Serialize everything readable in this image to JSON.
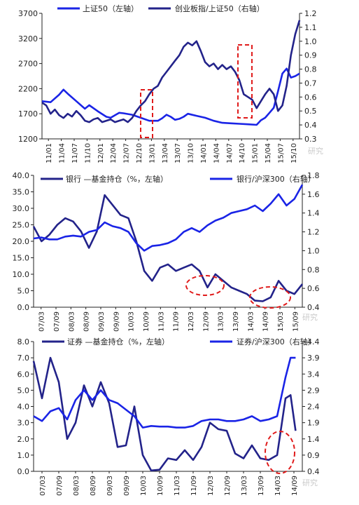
{
  "colors": {
    "blue": "#1a24e6",
    "navy": "#23238a",
    "red": "#e01b1b",
    "axis": "#222222"
  },
  "chart_data": [
    {
      "type": "line",
      "legend_position": "top",
      "legend": [
        "上证50（左轴）",
        "创业板指/上证50（右轴）"
      ],
      "left_axis": {
        "ticks": [
          "1200",
          "1700",
          "2200",
          "2700",
          "3200",
          "3700"
        ],
        "range": [
          1200,
          3700
        ]
      },
      "right_axis": {
        "ticks": [
          "0.3",
          "0.4",
          "0.5",
          "0.6",
          "0.7",
          "0.8",
          "0.9",
          "1.0",
          "1.1",
          "1.2"
        ],
        "range": [
          0.3,
          1.2
        ]
      },
      "x_ticks": [
        "11/01",
        "11/04",
        "11/07",
        "11/10",
        "12/01",
        "12/04",
        "12/07",
        "12/10",
        "13/01",
        "13/04",
        "13/07",
        "13/10",
        "14/01",
        "14/04",
        "14/07",
        "14/10",
        "15/01",
        "15/04",
        "15/07",
        "15/10"
      ],
      "x_range": [
        0,
        60
      ],
      "series": [
        {
          "name": "上证50（左轴）",
          "color": "#1a24e6",
          "axis": "left",
          "points": [
            [
              0,
              1950
            ],
            [
              2,
              1930
            ],
            [
              4,
              2080
            ],
            [
              5,
              2180
            ],
            [
              6,
              2100
            ],
            [
              8,
              1950
            ],
            [
              10,
              1800
            ],
            [
              11,
              1870
            ],
            [
              13,
              1750
            ],
            [
              15,
              1640
            ],
            [
              16,
              1620
            ],
            [
              18,
              1720
            ],
            [
              19,
              1710
            ],
            [
              21,
              1680
            ],
            [
              23,
              1620
            ],
            [
              25,
              1560
            ],
            [
              27,
              1560
            ],
            [
              28,
              1610
            ],
            [
              29,
              1680
            ],
            [
              30,
              1640
            ],
            [
              31,
              1580
            ],
            [
              32,
              1600
            ],
            [
              33,
              1640
            ],
            [
              34,
              1700
            ],
            [
              36,
              1660
            ],
            [
              38,
              1620
            ],
            [
              40,
              1560
            ],
            [
              42,
              1520
            ],
            [
              44,
              1510
            ],
            [
              46,
              1500
            ],
            [
              48,
              1490
            ],
            [
              50,
              1480
            ],
            [
              51,
              1570
            ],
            [
              52,
              1620
            ],
            [
              53,
              1720
            ],
            [
              54,
              1820
            ],
            [
              55,
              2150
            ],
            [
              56,
              2500
            ],
            [
              57,
              2600
            ],
            [
              58,
              2420
            ],
            [
              59,
              2450
            ],
            [
              60,
              2500
            ]
          ]
        },
        {
          "name": "创业板指/上证50（右轴）",
          "color": "#23238a",
          "axis": "right",
          "points": [
            [
              0,
              0.56
            ],
            [
              1,
              0.54
            ],
            [
              2,
              0.48
            ],
            [
              3,
              0.51
            ],
            [
              4,
              0.47
            ],
            [
              5,
              0.45
            ],
            [
              6,
              0.48
            ],
            [
              7,
              0.46
            ],
            [
              8,
              0.5
            ],
            [
              9,
              0.47
            ],
            [
              10,
              0.43
            ],
            [
              11,
              0.42
            ],
            [
              12,
              0.44
            ],
            [
              13,
              0.45
            ],
            [
              14,
              0.42
            ],
            [
              15,
              0.43
            ],
            [
              16,
              0.44
            ],
            [
              17,
              0.42
            ],
            [
              18,
              0.43
            ],
            [
              19,
              0.44
            ],
            [
              20,
              0.42
            ],
            [
              21,
              0.45
            ],
            [
              22,
              0.5
            ],
            [
              23,
              0.54
            ],
            [
              24,
              0.57
            ],
            [
              25,
              0.62
            ],
            [
              26,
              0.66
            ],
            [
              27,
              0.68
            ],
            [
              28,
              0.74
            ],
            [
              29,
              0.78
            ],
            [
              30,
              0.82
            ],
            [
              31,
              0.86
            ],
            [
              32,
              0.9
            ],
            [
              33,
              0.96
            ],
            [
              34,
              0.99
            ],
            [
              35,
              0.97
            ],
            [
              36,
              1.0
            ],
            [
              37,
              0.93
            ],
            [
              38,
              0.85
            ],
            [
              39,
              0.82
            ],
            [
              40,
              0.84
            ],
            [
              41,
              0.8
            ],
            [
              42,
              0.83
            ],
            [
              43,
              0.8
            ],
            [
              44,
              0.82
            ],
            [
              45,
              0.78
            ],
            [
              46,
              0.72
            ],
            [
              47,
              0.62
            ],
            [
              48,
              0.6
            ],
            [
              49,
              0.58
            ],
            [
              50,
              0.52
            ],
            [
              51,
              0.57
            ],
            [
              52,
              0.62
            ],
            [
              53,
              0.66
            ],
            [
              54,
              0.62
            ],
            [
              55,
              0.5
            ],
            [
              56,
              0.54
            ],
            [
              57,
              0.68
            ],
            [
              58,
              0.9
            ],
            [
              59,
              1.05
            ],
            [
              60,
              1.15
            ]
          ]
        }
      ]
    },
    {
      "type": "line",
      "legend_position": "top",
      "legend": [
        "银行 —基金持仓（%，左轴）",
        "银行/沪深300（右轴）"
      ],
      "left_axis": {
        "ticks": [
          "0.0",
          "5.0",
          "10.0",
          "15.0",
          "20.0",
          "25.0",
          "30.0",
          "35.0",
          "40.0"
        ],
        "range": [
          0,
          40
        ]
      },
      "right_axis": {
        "ticks": [
          "0.4",
          "0.6",
          "0.8",
          "1.0",
          "1.2",
          "1.4",
          "1.6",
          "1.8"
        ],
        "range": [
          0.4,
          1.8
        ]
      },
      "x_ticks": [
        "07/03",
        "07/09",
        "08/03",
        "08/09",
        "09/03",
        "09/09",
        "10/03",
        "10/09",
        "11/03",
        "11/09",
        "12/03",
        "12/09",
        "13/03",
        "13/09",
        "14/03",
        "14/09",
        "15/03",
        "15/09"
      ],
      "x_range": [
        0,
        17
      ],
      "series": [
        {
          "name": "银行 —基金持仓（%，左轴）",
          "color": "#23238a",
          "axis": "left",
          "points": [
            [
              0,
              24.5
            ],
            [
              0.5,
              20
            ],
            [
              1,
              22
            ],
            [
              1.5,
              25
            ],
            [
              2,
              27
            ],
            [
              2.5,
              26
            ],
            [
              3,
              23
            ],
            [
              3.5,
              18
            ],
            [
              4,
              23
            ],
            [
              4.5,
              34
            ],
            [
              5,
              31
            ],
            [
              5.5,
              28
            ],
            [
              6,
              27
            ],
            [
              6.5,
              20
            ],
            [
              7,
              11
            ],
            [
              7.5,
              8
            ],
            [
              8,
              12
            ],
            [
              8.5,
              13
            ],
            [
              9,
              11
            ],
            [
              9.5,
              12
            ],
            [
              10,
              13
            ],
            [
              10.5,
              11
            ],
            [
              11,
              6
            ],
            [
              11.5,
              10
            ],
            [
              12,
              8
            ],
            [
              12.5,
              6
            ],
            [
              13,
              5
            ],
            [
              13.5,
              4
            ],
            [
              14,
              2
            ],
            [
              14.5,
              1.8
            ],
            [
              15,
              3
            ],
            [
              15.5,
              8
            ],
            [
              16,
              5
            ],
            [
              16.5,
              4
            ],
            [
              17,
              7
            ]
          ]
        },
        {
          "name": "银行/沪深300（右轴）",
          "color": "#1a24e6",
          "axis": "right",
          "points": [
            [
              0,
              1.13
            ],
            [
              0.5,
              1.14
            ],
            [
              1,
              1.12
            ],
            [
              1.5,
              1.12
            ],
            [
              2,
              1.15
            ],
            [
              2.5,
              1.16
            ],
            [
              3,
              1.15
            ],
            [
              3.5,
              1.2
            ],
            [
              4,
              1.22
            ],
            [
              4.5,
              1.3
            ],
            [
              5,
              1.26
            ],
            [
              5.5,
              1.24
            ],
            [
              6,
              1.2
            ],
            [
              6.5,
              1.08
            ],
            [
              7,
              1.0
            ],
            [
              7.5,
              1.05
            ],
            [
              8,
              1.06
            ],
            [
              8.5,
              1.08
            ],
            [
              9,
              1.12
            ],
            [
              9.5,
              1.2
            ],
            [
              10,
              1.24
            ],
            [
              10.5,
              1.2
            ],
            [
              11,
              1.27
            ],
            [
              11.5,
              1.32
            ],
            [
              12,
              1.35
            ],
            [
              12.5,
              1.4
            ],
            [
              13,
              1.42
            ],
            [
              13.5,
              1.44
            ],
            [
              14,
              1.48
            ],
            [
              14.5,
              1.42
            ],
            [
              15,
              1.5
            ],
            [
              15.5,
              1.6
            ],
            [
              16,
              1.48
            ],
            [
              16.5,
              1.55
            ],
            [
              17,
              1.7
            ]
          ]
        }
      ]
    },
    {
      "type": "line",
      "legend_position": "top",
      "legend": [
        "证券 —基金持仓（%，左轴）",
        "证券/沪深300（右轴）"
      ],
      "left_axis": {
        "ticks": [
          "0.0",
          "1.0",
          "2.0",
          "3.0",
          "4.0",
          "5.0",
          "6.0",
          "7.0",
          "8.0"
        ],
        "range": [
          0,
          8
        ]
      },
      "right_axis": {
        "ticks": [
          "0.4",
          "0.9",
          "1.4",
          "1.9",
          "2.4",
          "2.9",
          "3.4",
          "3.9",
          "4.4"
        ],
        "range": [
          0.4,
          4.4
        ]
      },
      "x_ticks": [
        "07/03",
        "07/09",
        "08/03",
        "08/09",
        "09/03",
        "09/09",
        "10/03",
        "10/09",
        "11/03",
        "11/09",
        "12/03",
        "12/09",
        "13/03",
        "13/09",
        "14/03",
        "14/09"
      ],
      "x_range": [
        0,
        16
      ],
      "series": [
        {
          "name": "证券 —基金持仓（%，左轴）",
          "color": "#23238a",
          "axis": "left",
          "points": [
            [
              0,
              6.8
            ],
            [
              0.5,
              4.5
            ],
            [
              1,
              7.0
            ],
            [
              1.5,
              5.5
            ],
            [
              2,
              2.0
            ],
            [
              2.5,
              3.0
            ],
            [
              3,
              5.3
            ],
            [
              3.5,
              4.0
            ],
            [
              4,
              5.5
            ],
            [
              4.5,
              4.2
            ],
            [
              5,
              1.5
            ],
            [
              5.5,
              1.6
            ],
            [
              6,
              4.0
            ],
            [
              6.5,
              1.0
            ],
            [
              7,
              0.05
            ],
            [
              7.5,
              0.1
            ],
            [
              8,
              0.8
            ],
            [
              8.5,
              0.7
            ],
            [
              9,
              1.3
            ],
            [
              9.5,
              0.7
            ],
            [
              10,
              1.5
            ],
            [
              10.5,
              3.0
            ],
            [
              11,
              2.6
            ],
            [
              11.5,
              2.5
            ],
            [
              12,
              1.1
            ],
            [
              12.5,
              0.8
            ],
            [
              13,
              1.6
            ],
            [
              13.5,
              0.8
            ],
            [
              14,
              0.7
            ],
            [
              14.5,
              1.0
            ],
            [
              15,
              4.5
            ],
            [
              15.3,
              4.7
            ],
            [
              15.6,
              2.5
            ]
          ]
        },
        {
          "name": "证券/沪深300（右轴）",
          "color": "#1a24e6",
          "axis": "right",
          "points": [
            [
              0,
              2.1
            ],
            [
              0.5,
              1.95
            ],
            [
              1,
              2.25
            ],
            [
              1.5,
              2.35
            ],
            [
              2,
              2.0
            ],
            [
              2.5,
              2.6
            ],
            [
              3,
              2.9
            ],
            [
              3.5,
              2.6
            ],
            [
              4,
              2.9
            ],
            [
              4.5,
              2.6
            ],
            [
              5,
              2.5
            ],
            [
              5.5,
              2.3
            ],
            [
              6,
              2.1
            ],
            [
              6.5,
              1.75
            ],
            [
              7,
              1.8
            ],
            [
              7.5,
              1.78
            ],
            [
              8,
              1.78
            ],
            [
              8.5,
              1.75
            ],
            [
              9,
              1.75
            ],
            [
              9.5,
              1.8
            ],
            [
              10,
              1.95
            ],
            [
              10.5,
              2.0
            ],
            [
              11,
              2.0
            ],
            [
              11.5,
              1.95
            ],
            [
              12,
              1.95
            ],
            [
              12.5,
              2.0
            ],
            [
              13,
              2.1
            ],
            [
              13.5,
              1.95
            ],
            [
              14,
              2.0
            ],
            [
              14.5,
              2.1
            ],
            [
              15,
              3.3
            ],
            [
              15.3,
              3.9
            ],
            [
              15.6,
              3.9
            ]
          ]
        }
      ]
    }
  ],
  "watermarks": [
    "研究",
    "研究",
    "研究"
  ]
}
